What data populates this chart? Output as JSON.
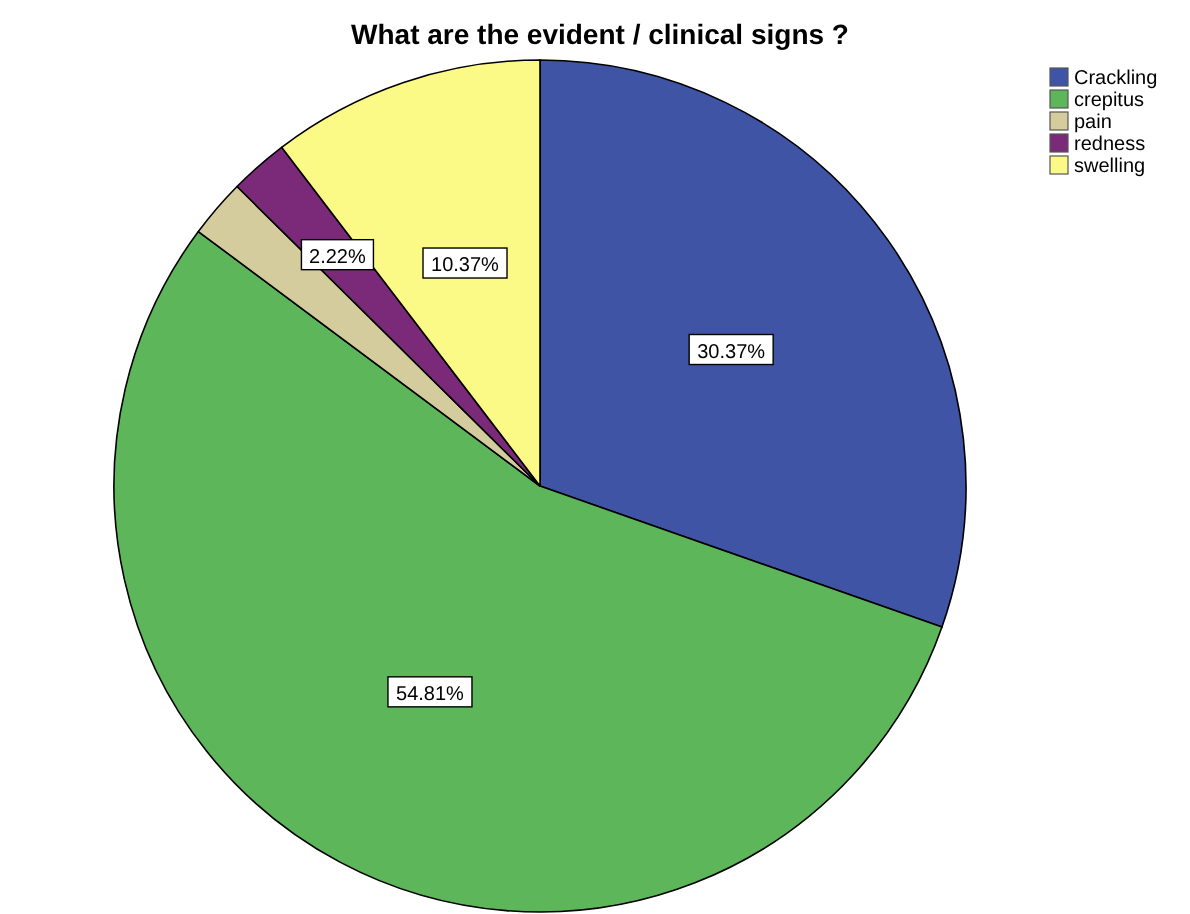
{
  "chart_data": {
    "type": "pie",
    "title": "What are the evident / clinical signs ?",
    "categories": [
      "Crackling",
      "crepitus",
      "pain",
      "redness",
      "swelling"
    ],
    "values": [
      30.37,
      54.81,
      2.22,
      2.22,
      10.37
    ],
    "colors": [
      "#3f54a4",
      "#5db65a",
      "#d4cc9c",
      "#7a2a78",
      "#fbfa86"
    ],
    "value_labels": [
      "30.37%",
      "54.81%",
      null,
      "2.22%",
      "10.37%"
    ],
    "legend": "top right"
  }
}
